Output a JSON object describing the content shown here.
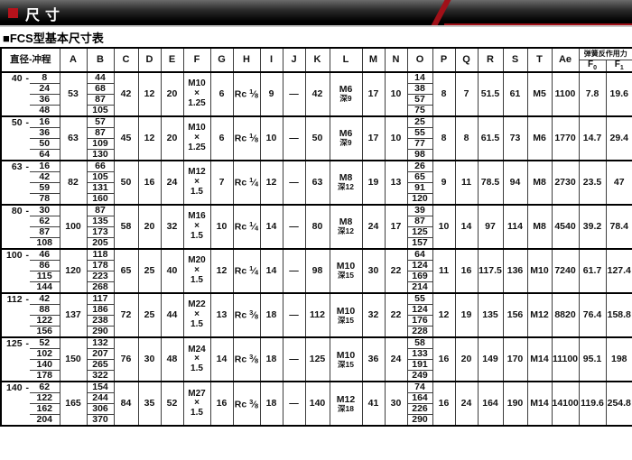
{
  "banner": {
    "title": "尺寸"
  },
  "subtitle": "■FCS型基本尺寸表",
  "colors": {
    "banner_red": "#b5121b",
    "accent_red": "#a01018",
    "banner_bg": "#000000"
  },
  "icons": {
    "banner_bullet": "red-square-icon",
    "subtitle_bullet": "black-square-icon"
  },
  "table": {
    "dash": "-",
    "header": {
      "first": "直径-冲程",
      "letters": [
        "A",
        "B",
        "C",
        "D",
        "E",
        "F",
        "G",
        "H",
        "I",
        "J",
        "K",
        "L",
        "M",
        "N",
        "O",
        "P",
        "Q",
        "R",
        "S",
        "T",
        "Ae"
      ],
      "spring": {
        "label": "弹簧反作用力",
        "f0": {
          "base": "F",
          "sub": "0"
        },
        "f1": {
          "base": "F",
          "sub": "1"
        }
      }
    },
    "rows": [
      {
        "dia": "40",
        "strokes": [
          "8",
          "24",
          "36",
          "48"
        ],
        "A": "53",
        "B": [
          "44",
          "68",
          "87",
          "105"
        ],
        "C": "42",
        "D": "12",
        "E": "20",
        "F": [
          "M10",
          "×",
          "1.25"
        ],
        "G": "6",
        "H": {
          "p": "Rc",
          "n": "1",
          "d": "8"
        },
        "I": "9",
        "J": "—",
        "K": "42",
        "L": [
          "M6",
          "深9"
        ],
        "M": "17",
        "N": "10",
        "O": [
          "14",
          "38",
          "57",
          "75"
        ],
        "P": "8",
        "Q": "7",
        "R": "51.5",
        "S": "61",
        "T": "M5",
        "Ae": "1100",
        "F0": "7.8",
        "F1": "19.6"
      },
      {
        "dia": "50",
        "strokes": [
          "16",
          "36",
          "50",
          "64"
        ],
        "A": "63",
        "B": [
          "57",
          "87",
          "109",
          "130"
        ],
        "C": "45",
        "D": "12",
        "E": "20",
        "F": [
          "M10",
          "×",
          "1.25"
        ],
        "G": "6",
        "H": {
          "p": "Rc",
          "n": "1",
          "d": "8"
        },
        "I": "10",
        "J": "—",
        "K": "50",
        "L": [
          "M6",
          "深9"
        ],
        "M": "17",
        "N": "10",
        "O": [
          "25",
          "55",
          "77",
          "98"
        ],
        "P": "8",
        "Q": "8",
        "R": "61.5",
        "S": "73",
        "T": "M6",
        "Ae": "1770",
        "F0": "14.7",
        "F1": "29.4"
      },
      {
        "dia": "63",
        "strokes": [
          "16",
          "42",
          "59",
          "78"
        ],
        "A": "82",
        "B": [
          "66",
          "105",
          "131",
          "160"
        ],
        "C": "50",
        "D": "16",
        "E": "24",
        "F": [
          "M12",
          "×",
          "1.5"
        ],
        "G": "7",
        "H": {
          "p": "Rc",
          "n": "1",
          "d": "4"
        },
        "I": "12",
        "J": "—",
        "K": "63",
        "L": [
          "M8",
          "深12"
        ],
        "M": "19",
        "N": "13",
        "O": [
          "26",
          "65",
          "91",
          "120"
        ],
        "P": "9",
        "Q": "11",
        "R": "78.5",
        "S": "94",
        "T": "M8",
        "Ae": "2730",
        "F0": "23.5",
        "F1": "47"
      },
      {
        "dia": "80",
        "strokes": [
          "30",
          "62",
          "87",
          "108"
        ],
        "A": "100",
        "B": [
          "87",
          "135",
          "173",
          "205"
        ],
        "C": "58",
        "D": "20",
        "E": "32",
        "F": [
          "M16",
          "×",
          "1.5"
        ],
        "G": "10",
        "H": {
          "p": "Rc",
          "n": "1",
          "d": "4"
        },
        "I": "14",
        "J": "—",
        "K": "80",
        "L": [
          "M8",
          "深12"
        ],
        "M": "24",
        "N": "17",
        "O": [
          "39",
          "87",
          "125",
          "157"
        ],
        "P": "10",
        "Q": "14",
        "R": "97",
        "S": "114",
        "T": "M8",
        "Ae": "4540",
        "F0": "39.2",
        "F1": "78.4"
      },
      {
        "dia": "100",
        "strokes": [
          "46",
          "86",
          "115",
          "144"
        ],
        "A": "120",
        "B": [
          "118",
          "178",
          "223",
          "268"
        ],
        "C": "65",
        "D": "25",
        "E": "40",
        "F": [
          "M20",
          "×",
          "1.5"
        ],
        "G": "12",
        "H": {
          "p": "Rc",
          "n": "1",
          "d": "4"
        },
        "I": "14",
        "J": "—",
        "K": "98",
        "L": [
          "M10",
          "深15"
        ],
        "M": "30",
        "N": "22",
        "O": [
          "64",
          "124",
          "169",
          "214"
        ],
        "P": "11",
        "Q": "16",
        "R": "117.5",
        "S": "136",
        "T": "M10",
        "Ae": "7240",
        "F0": "61.7",
        "F1": "127.4"
      },
      {
        "dia": "112",
        "strokes": [
          "42",
          "88",
          "122",
          "156"
        ],
        "A": "137",
        "B": [
          "117",
          "186",
          "238",
          "290"
        ],
        "C": "72",
        "D": "25",
        "E": "44",
        "F": [
          "M22",
          "×",
          "1.5"
        ],
        "G": "13",
        "H": {
          "p": "Rc",
          "n": "3",
          "d": "8"
        },
        "I": "18",
        "J": "—",
        "K": "112",
        "L": [
          "M10",
          "深15"
        ],
        "M": "32",
        "N": "22",
        "O": [
          "55",
          "124",
          "176",
          "228"
        ],
        "P": "12",
        "Q": "19",
        "R": "135",
        "S": "156",
        "T": "M12",
        "Ae": "8820",
        "F0": "76.4",
        "F1": "158.8"
      },
      {
        "dia": "125",
        "strokes": [
          "52",
          "102",
          "140",
          "178"
        ],
        "A": "150",
        "B": [
          "132",
          "207",
          "265",
          "322"
        ],
        "C": "76",
        "D": "30",
        "E": "48",
        "F": [
          "M24",
          "×",
          "1.5"
        ],
        "G": "14",
        "H": {
          "p": "Rc",
          "n": "3",
          "d": "8"
        },
        "I": "18",
        "J": "—",
        "K": "125",
        "L": [
          "M10",
          "深15"
        ],
        "M": "36",
        "N": "24",
        "O": [
          "58",
          "133",
          "191",
          "249"
        ],
        "P": "16",
        "Q": "20",
        "R": "149",
        "S": "170",
        "T": "M14",
        "Ae": "11100",
        "F0": "95.1",
        "F1": "198"
      },
      {
        "dia": "140",
        "strokes": [
          "62",
          "122",
          "162",
          "204"
        ],
        "A": "165",
        "B": [
          "154",
          "244",
          "306",
          "370"
        ],
        "C": "84",
        "D": "35",
        "E": "52",
        "F": [
          "M27",
          "×",
          "1.5"
        ],
        "G": "16",
        "H": {
          "p": "Rc",
          "n": "3",
          "d": "8"
        },
        "I": "18",
        "J": "—",
        "K": "140",
        "L": [
          "M12",
          "深18"
        ],
        "M": "41",
        "N": "30",
        "O": [
          "74",
          "164",
          "226",
          "290"
        ],
        "P": "16",
        "Q": "24",
        "R": "164",
        "S": "190",
        "T": "M14",
        "Ae": "14100",
        "F0": "119.6",
        "F1": "254.8"
      }
    ]
  }
}
